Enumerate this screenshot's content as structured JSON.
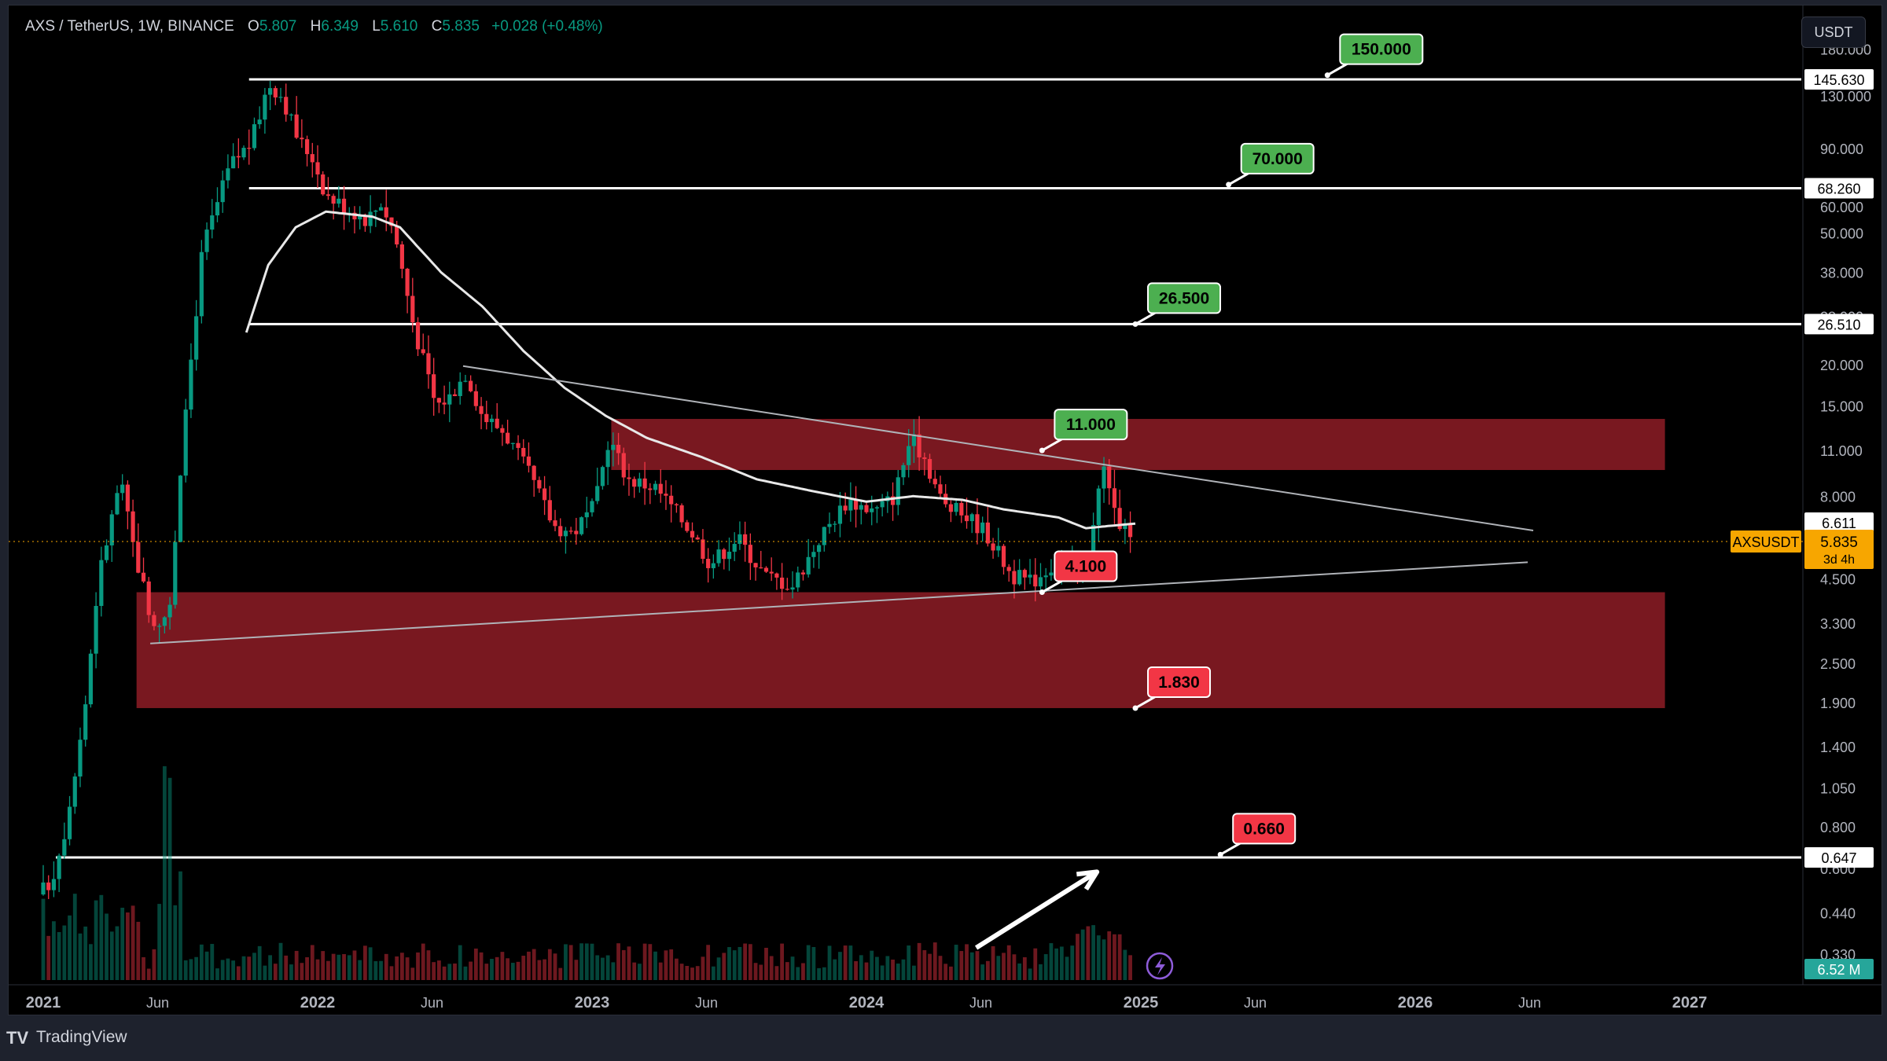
{
  "header": {
    "symbol": "AXS / TetherUS, 1W, BINANCE",
    "open_label": "O",
    "open": "5.807",
    "high_label": "H",
    "high": "6.349",
    "low_label": "L",
    "low": "5.610",
    "close_label": "C",
    "close": "5.835",
    "change": "+0.028 (+0.48%)"
  },
  "currency_button": "USDT",
  "footer": {
    "logo": "TV",
    "brand": "TradingView"
  },
  "colors": {
    "up": "#089981",
    "down": "#f23645",
    "zone": "#801922",
    "green_label": "#4caf50",
    "red_label": "#f23645",
    "price_tag": "#f7a600"
  },
  "chart_data": {
    "type": "candlestick",
    "scale": "log",
    "x_tick_labels": [
      {
        "t": 2021.0,
        "label": "2021"
      },
      {
        "t": 2021.417,
        "label": "Jun"
      },
      {
        "t": 2022.0,
        "label": "2022"
      },
      {
        "t": 2022.417,
        "label": "Jun"
      },
      {
        "t": 2023.0,
        "label": "2023"
      },
      {
        "t": 2023.417,
        "label": "Jun"
      },
      {
        "t": 2024.0,
        "label": "2024"
      },
      {
        "t": 2024.417,
        "label": "Jun"
      },
      {
        "t": 2025.0,
        "label": "2025"
      },
      {
        "t": 2025.417,
        "label": "Jun"
      },
      {
        "t": 2026.0,
        "label": "2026"
      },
      {
        "t": 2026.417,
        "label": "Jun"
      },
      {
        "t": 2027.0,
        "label": "2027"
      }
    ],
    "y_tick_labels": [
      "180.000",
      "130.000",
      "90.000",
      "60.000",
      "50.000",
      "38.000",
      "28.000",
      "20.000",
      "15.000",
      "11.000",
      "8.000",
      "4.500",
      "3.300",
      "2.500",
      "1.900",
      "1.400",
      "1.050",
      "0.800",
      "0.600",
      "0.440",
      "0.330"
    ],
    "y_ticks": [
      180,
      130,
      90,
      60,
      50,
      38,
      28,
      20,
      15,
      11,
      8,
      4.5,
      3.3,
      2.5,
      1.9,
      1.4,
      1.05,
      0.8,
      0.6,
      0.44,
      0.33
    ],
    "horizontal_levels": [
      {
        "value": 145.63,
        "label": "145.630"
      },
      {
        "value": 68.26,
        "label": "68.260"
      },
      {
        "value": 26.51,
        "label": "26.510"
      },
      {
        "value": 0.647,
        "label": "0.647"
      }
    ],
    "target_labels": [
      {
        "text": "150.000",
        "kind": "green",
        "t": 2025.68,
        "price": 150
      },
      {
        "text": "70.000",
        "kind": "green",
        "t": 2025.32,
        "price": 70
      },
      {
        "text": "26.500",
        "kind": "green",
        "t": 2024.98,
        "price": 26.5
      },
      {
        "text": "11.000",
        "kind": "green",
        "t": 2024.64,
        "price": 11
      },
      {
        "text": "4.100",
        "kind": "red",
        "t": 2024.64,
        "price": 4.1
      },
      {
        "text": "1.830",
        "kind": "red",
        "t": 2024.98,
        "price": 1.83
      },
      {
        "text": "0.660",
        "kind": "red",
        "t": 2025.29,
        "price": 0.66
      }
    ],
    "zones": [
      {
        "t1": 2023.07,
        "t2": 2026.91,
        "high": 13.7,
        "low": 9.6
      },
      {
        "t1": 2021.34,
        "t2": 2026.91,
        "high": 4.1,
        "low": 1.83
      }
    ],
    "trendlines": [
      {
        "t1": 2022.53,
        "p1": 19.8,
        "t2": 2026.43,
        "p2": 6.3
      },
      {
        "t1": 2021.39,
        "p1": 2.87,
        "t2": 2026.41,
        "p2": 5.05
      }
    ],
    "arrow": {
      "t1": 2024.4,
      "p1": 0.345,
      "t2": 2024.84,
      "p2": 0.585
    },
    "price_axis_tags": {
      "ma_value": "6.611",
      "last_price": "5.835",
      "countdown": "3d 4h",
      "symbol": "AXSUSDT",
      "volume": "6.52 M"
    },
    "ma_anchors": [
      [
        2021.74,
        25
      ],
      [
        2021.82,
        40
      ],
      [
        2021.92,
        52
      ],
      [
        2022.03,
        58
      ],
      [
        2022.2,
        56
      ],
      [
        2022.3,
        52
      ],
      [
        2022.45,
        38
      ],
      [
        2022.6,
        30
      ],
      [
        2022.75,
        22
      ],
      [
        2022.9,
        17
      ],
      [
        2023.05,
        14
      ],
      [
        2023.2,
        12
      ],
      [
        2023.4,
        10.5
      ],
      [
        2023.6,
        9.0
      ],
      [
        2023.8,
        8.3
      ],
      [
        2024.0,
        7.7
      ],
      [
        2024.17,
        8.0
      ],
      [
        2024.35,
        7.8
      ],
      [
        2024.5,
        7.3
      ],
      [
        2024.7,
        6.9
      ],
      [
        2024.8,
        6.4
      ],
      [
        2024.88,
        6.5
      ],
      [
        2024.98,
        6.611
      ]
    ],
    "price_anchors": [
      [
        2021.0,
        0.5
      ],
      [
        2021.05,
        0.55
      ],
      [
        2021.1,
        0.8
      ],
      [
        2021.17,
        1.8
      ],
      [
        2021.22,
        4.5
      ],
      [
        2021.3,
        9.0
      ],
      [
        2021.35,
        5.5
      ],
      [
        2021.42,
        3.3
      ],
      [
        2021.48,
        3.6
      ],
      [
        2021.55,
        18
      ],
      [
        2021.6,
        45
      ],
      [
        2021.7,
        80
      ],
      [
        2021.78,
        95
      ],
      [
        2021.84,
        142
      ],
      [
        2021.89,
        130
      ],
      [
        2021.95,
        95
      ],
      [
        2022.0,
        85
      ],
      [
        2022.05,
        65
      ],
      [
        2022.12,
        60
      ],
      [
        2022.2,
        55
      ],
      [
        2022.25,
        62
      ],
      [
        2022.3,
        50
      ],
      [
        2022.37,
        26
      ],
      [
        2022.45,
        15
      ],
      [
        2022.5,
        16
      ],
      [
        2022.56,
        19
      ],
      [
        2022.62,
        14
      ],
      [
        2022.7,
        12.5
      ],
      [
        2022.8,
        9
      ],
      [
        2022.88,
        6.5
      ],
      [
        2022.95,
        6.2
      ],
      [
        2023.03,
        7.5
      ],
      [
        2023.08,
        12
      ],
      [
        2023.15,
        9
      ],
      [
        2023.25,
        8.5
      ],
      [
        2023.38,
        6.3
      ],
      [
        2023.45,
        5.0
      ],
      [
        2023.55,
        6.0
      ],
      [
        2023.65,
        4.6
      ],
      [
        2023.75,
        4.3
      ],
      [
        2023.85,
        6.0
      ],
      [
        2023.95,
        7.8
      ],
      [
        2024.05,
        7.2
      ],
      [
        2024.12,
        8.0
      ],
      [
        2024.18,
        12.0
      ],
      [
        2024.23,
        10.5
      ],
      [
        2024.3,
        7.5
      ],
      [
        2024.38,
        7.0
      ],
      [
        2024.45,
        6.3
      ],
      [
        2024.55,
        4.6
      ],
      [
        2024.62,
        4.4
      ],
      [
        2024.7,
        5.0
      ],
      [
        2024.78,
        4.7
      ],
      [
        2024.83,
        5.6
      ],
      [
        2024.88,
        9.8
      ],
      [
        2024.92,
        7.0
      ],
      [
        2024.96,
        6.5
      ],
      [
        2024.98,
        5.835
      ]
    ]
  }
}
